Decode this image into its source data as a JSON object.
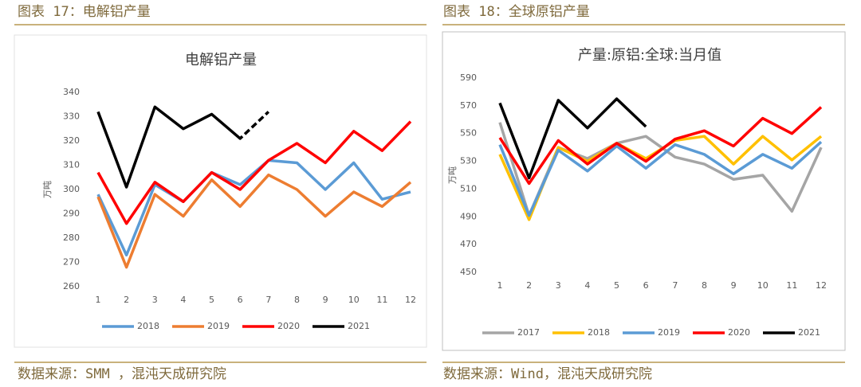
{
  "captions": [
    "图表 17：电解铝产量",
    "图表 18：全球原铝产量"
  ],
  "sources": [
    "数据来源：SMM ，混沌天成研究院",
    "数据来源：Wind，混沌天成研究院"
  ],
  "chart_data": [
    {
      "type": "line",
      "title": "电解铝产量",
      "y_label": "万吨",
      "categories": [
        1,
        2,
        3,
        4,
        5,
        6,
        7,
        8,
        9,
        10,
        11,
        12
      ],
      "ylim": [
        260,
        340
      ],
      "yticks": [
        260,
        270,
        280,
        290,
        300,
        310,
        320,
        330,
        340
      ],
      "dashed_after": 6,
      "series": [
        {
          "name": "2018",
          "color": "#5b9bd5",
          "values": [
            298,
            273,
            302,
            295,
            307,
            302,
            312,
            311,
            300,
            311,
            296,
            299
          ]
        },
        {
          "name": "2019",
          "color": "#ed7d31",
          "values": [
            297,
            268,
            298,
            289,
            304,
            293,
            306,
            300,
            289,
            299,
            293,
            303
          ]
        },
        {
          "name": "2020",
          "color": "#ff0000",
          "values": [
            307,
            286,
            303,
            295,
            307,
            300,
            312,
            319,
            311,
            324,
            316,
            328
          ]
        },
        {
          "name": "2021",
          "color": "#000000",
          "values": [
            332,
            301,
            334,
            325,
            331,
            321,
            332,
            null,
            null,
            null,
            null,
            null
          ]
        }
      ]
    },
    {
      "type": "line",
      "title": "产量:原铝:全球:当月值",
      "y_label": "万吨",
      "categories": [
        1,
        2,
        3,
        4,
        5,
        6,
        7,
        8,
        9,
        10,
        11,
        12
      ],
      "ylim": [
        450,
        590
      ],
      "yticks": [
        450,
        470,
        490,
        510,
        530,
        550,
        570,
        590
      ],
      "series": [
        {
          "name": "2017",
          "color": "#a5a5a5",
          "values": [
            558,
            491,
            540,
            532,
            543,
            548,
            533,
            528,
            517,
            520,
            494,
            540
          ]
        },
        {
          "name": "2018",
          "color": "#ffc000",
          "values": [
            535,
            488,
            540,
            530,
            543,
            532,
            545,
            548,
            528,
            548,
            531,
            548
          ]
        },
        {
          "name": "2019",
          "color": "#5b9bd5",
          "values": [
            542,
            491,
            538,
            523,
            541,
            525,
            542,
            535,
            521,
            535,
            525,
            544
          ]
        },
        {
          "name": "2020",
          "color": "#ff0000",
          "values": [
            547,
            514,
            545,
            528,
            543,
            530,
            546,
            552,
            541,
            561,
            550,
            569
          ]
        },
        {
          "name": "2021",
          "color": "#000000",
          "values": [
            572,
            518,
            574,
            554,
            575,
            555,
            null,
            null,
            null,
            null,
            null,
            null
          ]
        }
      ]
    }
  ]
}
